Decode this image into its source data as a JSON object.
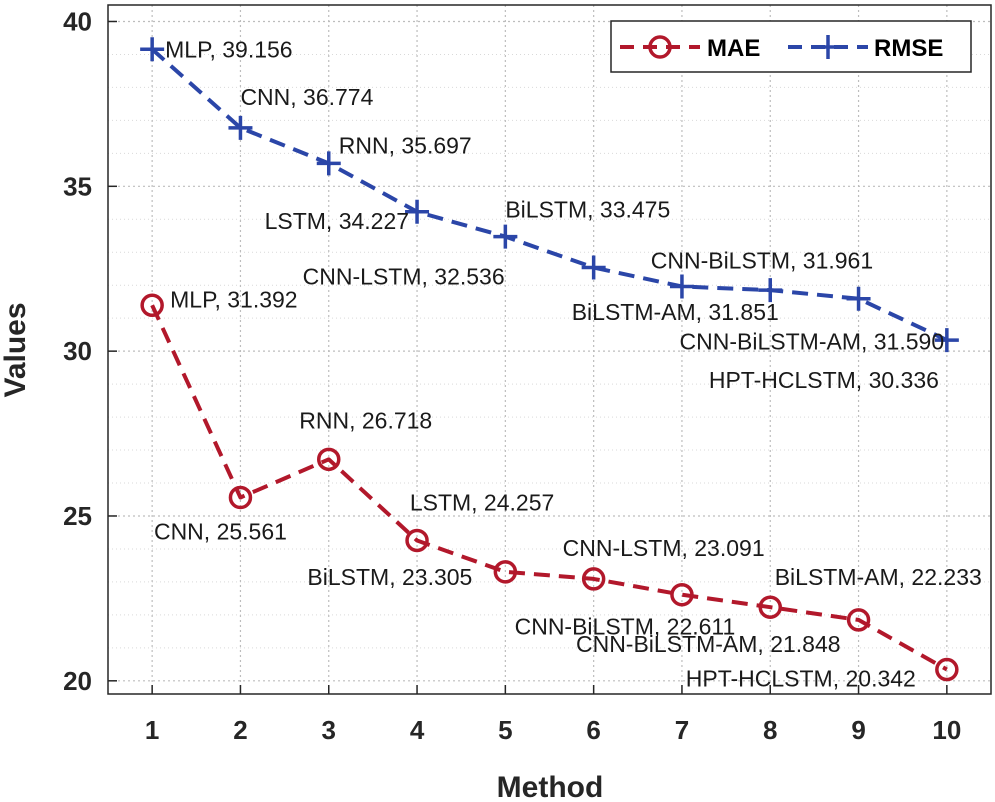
{
  "chart_data": {
    "type": "line",
    "xlabel": "Method",
    "ylabel": "Values",
    "xlim": [
      0.5,
      10.5
    ],
    "ylim": [
      19.6,
      40.5
    ],
    "x_ticks": [
      "1",
      "2",
      "3",
      "4",
      "5",
      "6",
      "7",
      "8",
      "9",
      "10"
    ],
    "y_ticks": [
      "20",
      "25",
      "30",
      "35",
      "40"
    ],
    "grid": true,
    "legend": "top-right",
    "series": [
      {
        "name": "MAE",
        "color": "#b2182b",
        "marker": "circle",
        "line_style": "dashed",
        "x": [
          1,
          2,
          3,
          4,
          5,
          6,
          7,
          8,
          9,
          10
        ],
        "values": [
          31.392,
          25.561,
          26.718,
          24.257,
          23.305,
          23.091,
          22.611,
          22.233,
          21.848,
          20.342
        ],
        "labels": [
          "MLP, 31.392",
          "CNN, 25.561",
          "RNN, 26.718",
          "LSTM, 24.257",
          "BiLSTM, 23.305",
          "CNN-LSTM, 23.091",
          "CNN-BiLSTM, 22.611",
          "BiLSTM-AM, 22.233",
          "CNN-BiLSTM-AM, 21.848",
          "HPT-HCLSTM, 20.342"
        ]
      },
      {
        "name": "RMSE",
        "color": "#2b46a8",
        "marker": "plus",
        "line_style": "dashed",
        "x": [
          1,
          2,
          3,
          4,
          5,
          6,
          7,
          8,
          9,
          10
        ],
        "values": [
          39.156,
          36.774,
          35.697,
          34.227,
          33.475,
          32.536,
          31.961,
          31.851,
          31.59,
          30.336
        ],
        "labels": [
          "MLP, 39.156",
          "CNN, 36.774",
          "RNN, 35.697",
          "LSTM, 34.227",
          "BiLSTM, 33.475",
          "CNN-LSTM, 32.536",
          "CNN-BiLSTM, 31.961",
          "BiLSTM-AM, 31.851",
          "CNN-BiLSTM-AM, 31.590",
          "HPT-HCLSTM, 30.336"
        ]
      }
    ]
  }
}
